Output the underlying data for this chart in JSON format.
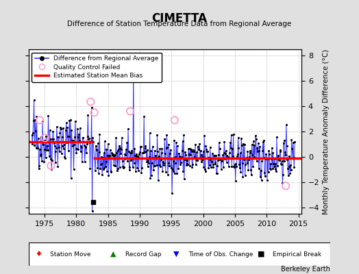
{
  "title": "CIMETTA",
  "subtitle": "Difference of Station Temperature Data from Regional Average",
  "ylabel": "Monthly Temperature Anomaly Difference (°C)",
  "xlabel_years": [
    1975,
    1980,
    1985,
    1990,
    1995,
    2000,
    2005,
    2010,
    2015
  ],
  "ylim": [
    -4.5,
    8.5
  ],
  "xlim": [
    1972.5,
    2015.5
  ],
  "yticks": [
    -4,
    -2,
    0,
    2,
    4,
    6,
    8
  ],
  "background_color": "#e0e0e0",
  "plot_bg_color": "#ffffff",
  "line_color": "#3333ff",
  "dot_color": "#000000",
  "bias_color": "#ff0000",
  "bias_segment1": [
    1972.5,
    1982.7,
    1.2
  ],
  "bias_segment2": [
    1982.7,
    2015.5,
    -0.1
  ],
  "empirical_break_x": 1982.7,
  "empirical_break_y": -3.6,
  "qc_failed": [
    [
      1974.25,
      2.9
    ],
    [
      1975.08,
      1.5
    ],
    [
      1976.0,
      -0.7
    ],
    [
      1982.25,
      4.35
    ],
    [
      1982.83,
      3.5
    ],
    [
      1988.5,
      3.6
    ],
    [
      1995.5,
      2.9
    ],
    [
      2013.0,
      -2.3
    ]
  ],
  "watermark": "Berkeley Earth",
  "seed": 42
}
